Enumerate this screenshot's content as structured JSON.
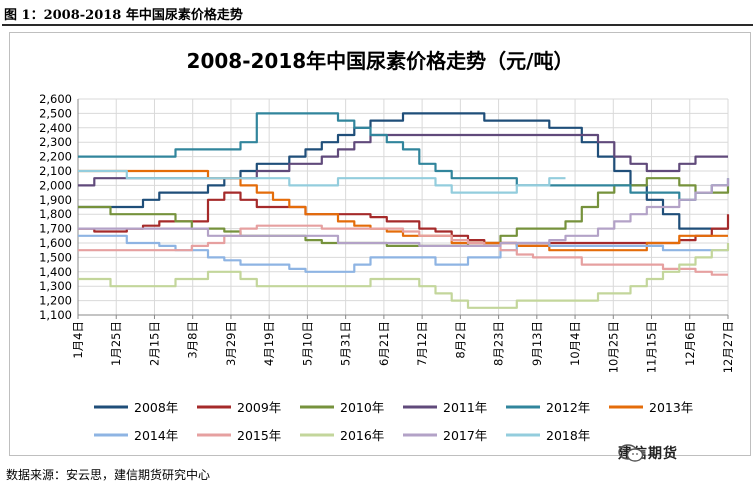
{
  "caption": "图 1：2008-2018 年中国尿素价格走势",
  "source": "数据来源：安云思，建信期货研究中心",
  "watermark": "建信期货",
  "chart_data": {
    "type": "line",
    "title": "2008-2018年中国尿素价格走势（元/吨）",
    "xlabel": "",
    "ylabel": "",
    "ylim": [
      1100,
      2600
    ],
    "yticks": [
      "2,600",
      "2,500",
      "2,400",
      "2,300",
      "2,200",
      "2,100",
      "2,000",
      "1,900",
      "1,800",
      "1,700",
      "1,600",
      "1,500",
      "1,400",
      "1,300",
      "1,200",
      "1,100"
    ],
    "xticks": [
      "1月4日",
      "1月25日",
      "2月15日",
      "3月8日",
      "3月29日",
      "4月19日",
      "5月10日",
      "5月31日",
      "6月21日",
      "7月12日",
      "8月2日",
      "8月23日",
      "9月13日",
      "10月4日",
      "10月25日",
      "11月15日",
      "12月6日",
      "12月27日"
    ],
    "grid": true,
    "legend_position": "bottom",
    "series": [
      {
        "name": "2008年",
        "color": "#1f4e79",
        "values": [
          1850,
          1850,
          1850,
          1850,
          1900,
          1950,
          1950,
          1950,
          2000,
          2050,
          2100,
          2150,
          2150,
          2200,
          2250,
          2300,
          2350,
          2400,
          2450,
          2450,
          2500,
          2500,
          2500,
          2500,
          2500,
          2450,
          2450,
          2450,
          2450,
          2400,
          2400,
          2300,
          2200,
          2100,
          2000,
          1900,
          1800,
          1700,
          1700,
          1700,
          1700
        ]
      },
      {
        "name": "2009年",
        "color": "#a52a2a",
        "values": [
          1700,
          1680,
          1680,
          1700,
          1720,
          1750,
          1750,
          1750,
          1900,
          1950,
          1900,
          1850,
          1850,
          1850,
          1800,
          1800,
          1800,
          1800,
          1780,
          1750,
          1750,
          1700,
          1680,
          1650,
          1620,
          1600,
          1600,
          1580,
          1580,
          1600,
          1600,
          1600,
          1600,
          1600,
          1600,
          1600,
          1600,
          1620,
          1650,
          1700,
          1800
        ]
      },
      {
        "name": "2010年",
        "color": "#76923c",
        "values": [
          1850,
          1850,
          1800,
          1800,
          1800,
          1800,
          1750,
          1700,
          1700,
          1680,
          1650,
          1650,
          1650,
          1650,
          1620,
          1600,
          1600,
          1600,
          1600,
          1580,
          1580,
          1580,
          1580,
          1580,
          1600,
          1600,
          1650,
          1700,
          1700,
          1700,
          1750,
          1850,
          1950,
          2000,
          2000,
          2050,
          2050,
          2000,
          1950,
          1950,
          2000
        ]
      },
      {
        "name": "2011年",
        "color": "#604a7b",
        "values": [
          2000,
          2050,
          2050,
          2050,
          2050,
          2050,
          2050,
          2050,
          2050,
          2050,
          2050,
          2100,
          2100,
          2150,
          2150,
          2200,
          2250,
          2300,
          2350,
          2350,
          2350,
          2350,
          2350,
          2350,
          2350,
          2350,
          2350,
          2350,
          2350,
          2350,
          2350,
          2350,
          2300,
          2200,
          2150,
          2100,
          2100,
          2150,
          2200,
          2200,
          2200
        ]
      },
      {
        "name": "2012年",
        "color": "#31859c",
        "values": [
          2200,
          2200,
          2200,
          2200,
          2200,
          2200,
          2250,
          2250,
          2250,
          2250,
          2300,
          2500,
          2500,
          2500,
          2500,
          2500,
          2450,
          2400,
          2350,
          2300,
          2250,
          2150,
          2100,
          2050,
          2050,
          2050,
          2050,
          2000,
          2000,
          2000,
          2000,
          2000,
          2000,
          2000,
          1950,
          1950,
          1950,
          1900,
          1950,
          2000,
          2050
        ]
      },
      {
        "name": "2013年",
        "color": "#e46c0a",
        "values": [
          2100,
          2100,
          2100,
          2100,
          2100,
          2100,
          2100,
          2100,
          2050,
          2050,
          2000,
          1950,
          1900,
          1850,
          1800,
          1800,
          1750,
          1720,
          1700,
          1680,
          1650,
          1650,
          1650,
          1600,
          1600,
          1600,
          1600,
          1580,
          1580,
          1550,
          1550,
          1550,
          1550,
          1550,
          1550,
          1600,
          1600,
          1650,
          1650,
          1650,
          1650
        ]
      },
      {
        "name": "2014年",
        "color": "#8eb4e3",
        "values": [
          1650,
          1650,
          1650,
          1600,
          1600,
          1580,
          1550,
          1550,
          1500,
          1480,
          1450,
          1450,
          1450,
          1420,
          1400,
          1400,
          1400,
          1450,
          1500,
          1500,
          1500,
          1500,
          1450,
          1450,
          1500,
          1500,
          1550,
          1600,
          1600,
          1580,
          1580,
          1580,
          1580,
          1580,
          1580,
          1580,
          1550,
          1550,
          1550,
          1550,
          1550
        ]
      },
      {
        "name": "2015年",
        "color": "#e6a0a0",
        "values": [
          1550,
          1550,
          1550,
          1550,
          1550,
          1550,
          1550,
          1580,
          1600,
          1650,
          1700,
          1720,
          1720,
          1720,
          1720,
          1700,
          1700,
          1700,
          1700,
          1700,
          1680,
          1650,
          1650,
          1620,
          1600,
          1580,
          1550,
          1520,
          1500,
          1500,
          1500,
          1450,
          1450,
          1450,
          1450,
          1450,
          1420,
          1420,
          1400,
          1380,
          1380
        ]
      },
      {
        "name": "2016年",
        "color": "#c3d69b",
        "values": [
          1350,
          1350,
          1300,
          1300,
          1300,
          1300,
          1350,
          1350,
          1400,
          1400,
          1350,
          1300,
          1300,
          1300,
          1300,
          1300,
          1300,
          1300,
          1350,
          1350,
          1350,
          1300,
          1250,
          1200,
          1150,
          1150,
          1150,
          1200,
          1200,
          1200,
          1200,
          1200,
          1250,
          1250,
          1300,
          1350,
          1400,
          1450,
          1500,
          1550,
          1600
        ]
      },
      {
        "name": "2017年",
        "color": "#b3a2c7",
        "values": [
          1700,
          1700,
          1700,
          1700,
          1700,
          1700,
          1700,
          1700,
          1650,
          1650,
          1650,
          1650,
          1650,
          1650,
          1650,
          1650,
          1600,
          1600,
          1600,
          1600,
          1600,
          1580,
          1580,
          1580,
          1580,
          1580,
          1600,
          1600,
          1600,
          1620,
          1650,
          1650,
          1700,
          1750,
          1800,
          1850,
          1850,
          1900,
          1950,
          2000,
          2050
        ]
      },
      {
        "name": "2018年",
        "color": "#93cddd",
        "values": [
          2100,
          2100,
          2100,
          2050,
          2050,
          2050,
          2050,
          2050,
          2050,
          2050,
          2050,
          2050,
          2050,
          2000,
          2000,
          2000,
          2050,
          2050,
          2050,
          2050,
          2050,
          2050,
          2000,
          1950,
          1950,
          1950,
          1950,
          2000,
          2000,
          2050,
          2050
        ]
      }
    ]
  }
}
